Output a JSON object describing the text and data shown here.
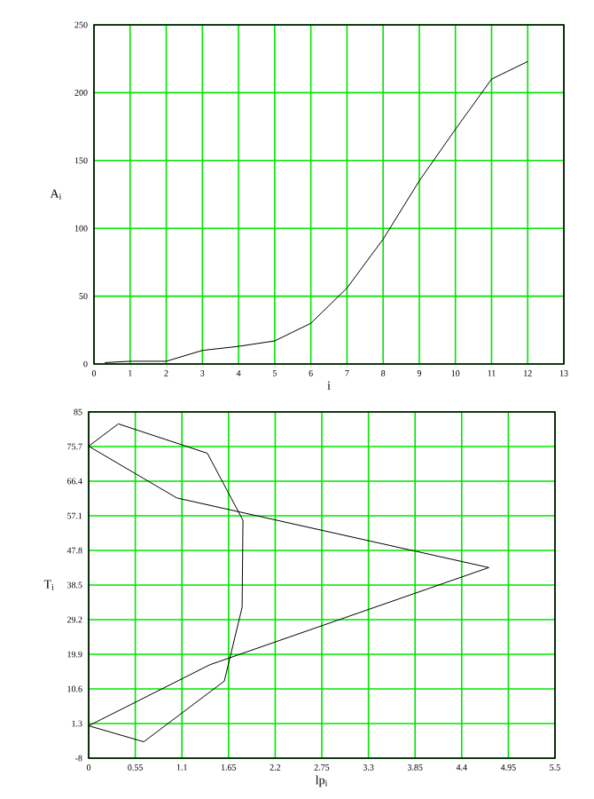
{
  "chart_data": [
    {
      "type": "line",
      "xlabel": "i",
      "ylabel": "A$_{i}$",
      "x": [
        0.3,
        1,
        2,
        3,
        4,
        5,
        6,
        7,
        8,
        9,
        10,
        11,
        12
      ],
      "values": [
        1,
        2,
        2,
        10,
        13,
        17,
        30,
        56,
        92,
        135,
        173,
        210,
        223
      ],
      "color": "#000000",
      "xlim": [
        0,
        13
      ],
      "xticks": [
        0,
        1,
        2,
        3,
        4,
        5,
        6,
        7,
        8,
        9,
        10,
        11,
        12,
        13
      ],
      "ylim": [
        0,
        250
      ],
      "yticks": [
        0,
        50,
        100,
        150,
        200,
        250
      ],
      "grid": true
    },
    {
      "type": "line",
      "xlabel": "lp$_{i}$",
      "ylabel": "T$_{i}$",
      "series": [
        {
          "x": [
            0,
            0.35,
            1.4,
            1.82,
            1.81,
            1.6,
            0.65,
            0
          ],
          "values": [
            75.8,
            81.8,
            73.9,
            55.9,
            32.5,
            12.7,
            -3.6,
            0.7
          ],
          "color": "#000000"
        },
        {
          "x": [
            0,
            1.43,
            4.72
          ],
          "values": [
            0.7,
            17.1,
            43.2
          ],
          "color": "#000000"
        },
        {
          "x": [
            4.72,
            1.04,
            0
          ],
          "values": [
            43.2,
            61.9,
            75.8
          ],
          "color": "#000000"
        }
      ],
      "xlim": [
        0,
        5.5
      ],
      "xticks": [
        0,
        0.55,
        1.1,
        1.65,
        2.2,
        2.75,
        3.3,
        3.85,
        4.4,
        4.95,
        5.5
      ],
      "ylim": [
        -8,
        85
      ],
      "yticks": [
        -8,
        1.3,
        10.6,
        19.9,
        29.2,
        38.5,
        47.8,
        57.1,
        66.4,
        75.7,
        85
      ],
      "grid": true
    }
  ]
}
